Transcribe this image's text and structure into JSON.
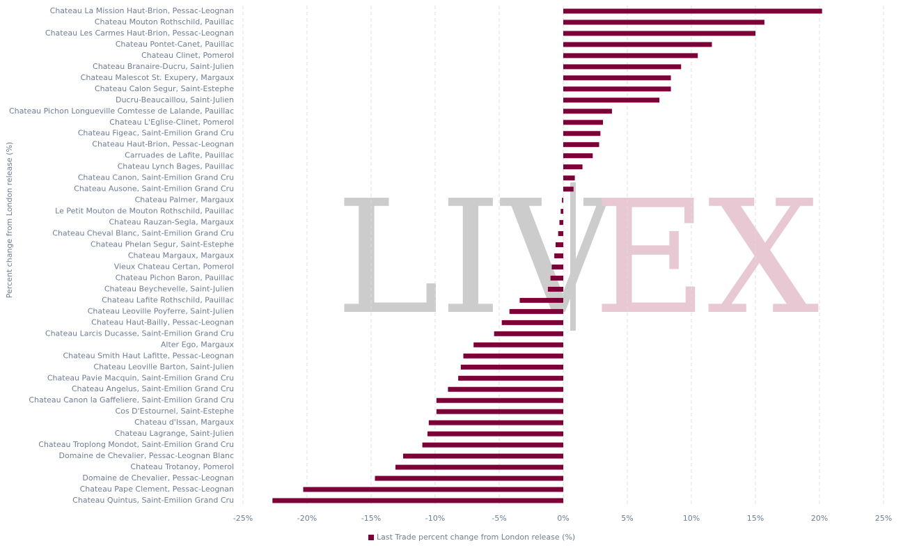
{
  "chart_data": {
    "type": "bar",
    "orientation": "horizontal",
    "y_label": "Percent change from London release (%)",
    "watermark_left": "LIV",
    "watermark_right": "EX",
    "categories": [
      "Chateau La Mission Haut-Brion, Pessac-Leognan",
      "Chateau Mouton Rothschild, Pauillac",
      "Chateau Les Carmes Haut-Brion, Pessac-Leognan",
      "Chateau Pontet-Canet, Pauillac",
      "Chateau Clinet, Pomerol",
      "Chateau Branaire-Ducru, Saint-Julien",
      "Chateau Malescot St. Exupery, Margaux",
      "Chateau Calon Segur, Saint-Estephe",
      "Ducru-Beaucaillou, Saint-Julien",
      "Chateau Pichon Longueville Comtesse de Lalande, Pauillac",
      "Chateau L'Eglise-Clinet, Pomerol",
      "Chateau Figeac, Saint-Emilion Grand Cru",
      "Chateau Haut-Brion, Pessac-Leognan",
      "Carruades de Lafite, Pauillac",
      "Chateau Lynch Bages, Pauillac",
      "Chateau Canon, Saint-Emilion Grand Cru",
      "Chateau Ausone, Saint-Emilion Grand Cru",
      "Chateau Palmer, Margaux",
      "Le Petit Mouton de Mouton Rothschild, Pauillac",
      "Chateau Rauzan-Segla, Margaux",
      "Chateau Cheval Blanc, Saint-Emilion Grand Cru",
      "Chateau Phelan Segur, Saint-Estephe",
      "Chateau Margaux, Margaux",
      "Vieux Chateau Certan, Pomerol",
      "Chateau Pichon Baron, Pauillac",
      "Chateau Beychevelle, Saint-Julien",
      "Chateau Lafite Rothschild, Pauillac",
      "Chateau Leoville Poyferre, Saint-Julien",
      "Chateau Haut-Bailly, Pessac-Leognan",
      "Chateau Larcis Ducasse, Saint-Emilion Grand Cru",
      "Alter Ego, Margaux",
      "Chateau Smith Haut Lafitte, Pessac-Leognan",
      "Chateau Leoville Barton, Saint-Julien",
      "Chateau Pavie Macquin, Saint-Emilion Grand Cru",
      "Chateau Angelus, Saint-Emilion Grand Cru",
      "Chateau Canon la Gaffeliere, Saint-Emilion Grand Cru",
      "Cos D'Estournel, Saint-Estephe",
      "Chateau d'Issan, Margaux",
      "Chateau Lagrange, Saint-Julien",
      "Chateau Troplong Mondot, Saint-Emilion Grand Cru",
      "Domaine de Chevalier, Pessac-Leognan Blanc",
      "Chateau Trotanoy, Pomerol",
      "Domaine de Chevalier, Pessac-Leognan",
      "Chateau Pape Clement, Pessac-Leognan",
      "Chateau Quintus, Saint-Emilion Grand Cru"
    ],
    "series": [
      {
        "name": "Last Trade percent change from London release (%)",
        "color": "#7d0036",
        "values": [
          20.2,
          15.7,
          15.0,
          11.6,
          10.5,
          9.2,
          8.4,
          8.4,
          7.5,
          3.8,
          3.1,
          2.9,
          2.8,
          2.3,
          1.5,
          0.9,
          0.8,
          -0.1,
          -0.2,
          -0.3,
          -0.4,
          -0.6,
          -0.7,
          -0.9,
          -1.0,
          -1.2,
          -3.4,
          -4.2,
          -4.8,
          -5.4,
          -7.0,
          -7.8,
          -8.0,
          -8.2,
          -9.0,
          -9.9,
          -9.9,
          -10.5,
          -10.6,
          -11.0,
          -12.5,
          -13.1,
          -14.7,
          -20.3,
          -22.7
        ]
      }
    ],
    "xlim": [
      -25,
      25
    ],
    "xticks": [
      {
        "value": -25,
        "label": "-25%"
      },
      {
        "value": -20,
        "label": "-20%"
      },
      {
        "value": -15,
        "label": "-15%"
      },
      {
        "value": -10,
        "label": "-10%"
      },
      {
        "value": -5,
        "label": "-5%"
      },
      {
        "value": 0,
        "label": "0%"
      },
      {
        "value": 5,
        "label": "5%"
      },
      {
        "value": 10,
        "label": "10%"
      },
      {
        "value": 15,
        "label": "15%"
      },
      {
        "value": 20,
        "label": "20%"
      },
      {
        "value": 25,
        "label": "25%"
      }
    ],
    "grid": true,
    "legend": "bottom"
  }
}
